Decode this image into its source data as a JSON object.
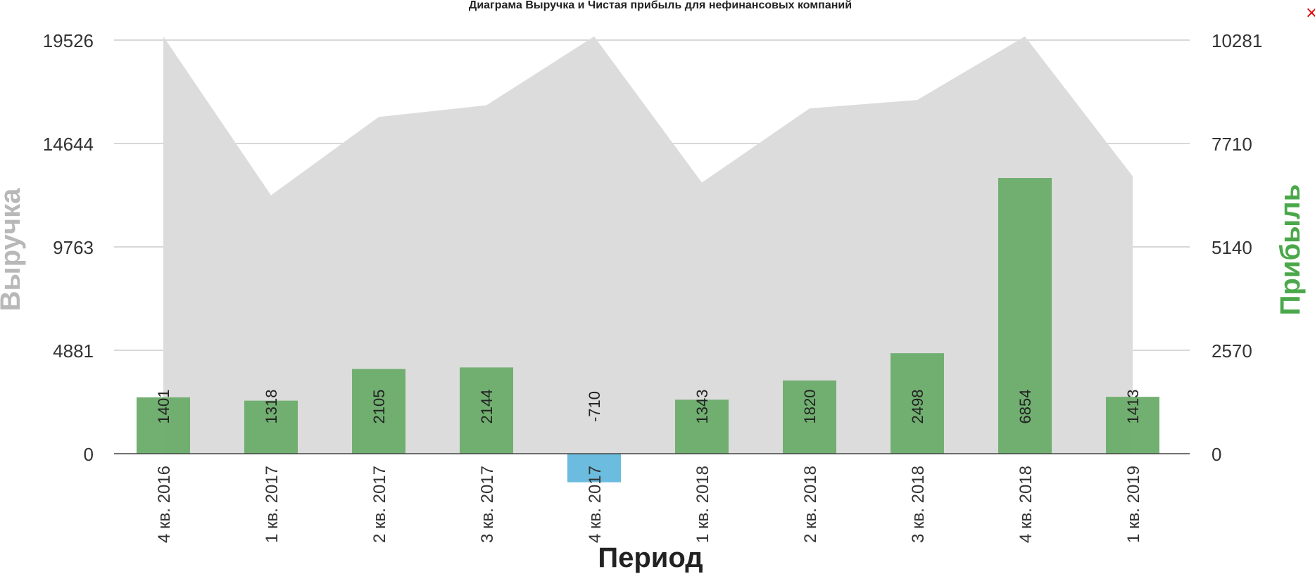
{
  "window": {
    "close_label": "×"
  },
  "chart_data": {
    "type": "bar",
    "title": "Диаграма Выручка и Чистая прибыль для нефинансовых компаний",
    "xlabel": "Период",
    "categories": [
      "4 кв. 2016",
      "1 кв. 2017",
      "2 кв. 2017",
      "3 кв. 2017",
      "4 кв. 2017",
      "1 кв. 2018",
      "2 кв. 2018",
      "3 кв. 2018",
      "4 кв. 2018",
      "1 кв. 2019"
    ],
    "left_axis": {
      "label": "Выручка",
      "ticks": [
        "0",
        "4881",
        "9763",
        "14644",
        "19526"
      ],
      "ylim": [
        0,
        19526
      ]
    },
    "right_axis": {
      "label": "Прибыль",
      "ticks": [
        "0",
        "2570",
        "5140",
        "7710",
        "10281"
      ],
      "ylim": [
        0,
        10281
      ]
    },
    "series": [
      {
        "type": "area",
        "axis": "left",
        "values": [
          19700,
          12200,
          15900,
          16450,
          19700,
          12800,
          16300,
          16700,
          19700,
          13100
        ]
      },
      {
        "type": "bar",
        "axis": "right",
        "values": [
          1401,
          1318,
          2105,
          2144,
          -710,
          1343,
          1820,
          2498,
          6854,
          1413
        ],
        "labels": [
          "1401",
          "1318",
          "2105",
          "2144",
          "-710",
          "1343",
          "1820",
          "2498",
          "6854",
          "1413"
        ]
      }
    ],
    "colors": {
      "area": "#dcdcdc",
      "bar_positive": "#6aac6a",
      "bar_negative": "#63b8dc",
      "left_axis_title": "#b8b8b8",
      "right_axis_title": "#4aa84a",
      "grid": "#cccccc"
    },
    "grid": true,
    "legend": "none"
  }
}
